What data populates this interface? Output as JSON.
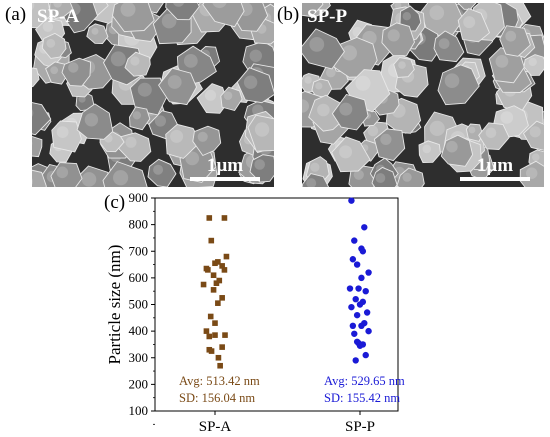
{
  "panels": {
    "a": {
      "label": "(a)",
      "tag": "SP-A",
      "scale": "1µm"
    },
    "b": {
      "label": "(b)",
      "tag": "SP-P",
      "scale": "1µm"
    },
    "c": {
      "label": "(c)"
    }
  },
  "chart_data": {
    "type": "scatter",
    "ylabel": "Particle size (nm)",
    "ylim": [
      100,
      900
    ],
    "yticks": [
      100,
      200,
      300,
      400,
      500,
      600,
      700,
      800,
      900
    ],
    "categories": [
      "SP-A",
      "SP-P"
    ],
    "grid": false,
    "series": [
      {
        "name": "SP-A",
        "marker": "square",
        "color": "#7a4a16",
        "jitter": [
          -0.2,
          0.33,
          -0.13,
          0.4,
          0.1,
          0.0,
          0.25,
          -0.3,
          0.33,
          -0.25,
          -0.05,
          0.15,
          0.05,
          -0.4,
          -0.05,
          0.25,
          0.1,
          -0.15,
          0.0,
          -0.3,
          0.0,
          -0.2,
          0.35,
          -0.2,
          0.25,
          -0.12,
          0.12,
          0.18
        ],
        "values": [
          825,
          825,
          740,
          680,
          660,
          655,
          645,
          635,
          630,
          630,
          610,
          590,
          580,
          575,
          555,
          525,
          505,
          455,
          430,
          400,
          385,
          380,
          385,
          330,
          340,
          325,
          300,
          270
        ],
        "annotation": {
          "avg": "Avg: 513.42 nm",
          "sd": "SD: 156.04 nm"
        }
      },
      {
        "name": "SP-P",
        "marker": "circle",
        "color": "#1a1ad6",
        "jitter": [
          -0.3,
          0.15,
          -0.2,
          0.05,
          0.1,
          -0.25,
          -0.1,
          0.3,
          0.05,
          -0.35,
          -0.05,
          0.2,
          -0.15,
          0.1,
          0.0,
          -0.3,
          0.25,
          -0.1,
          0.15,
          -0.25,
          0.05,
          0.3,
          -0.2,
          -0.1,
          0.1,
          -0.05,
          0.0,
          0.2,
          -0.15
        ],
        "values": [
          890,
          790,
          740,
          710,
          700,
          670,
          650,
          620,
          600,
          560,
          560,
          550,
          520,
          510,
          500,
          490,
          470,
          460,
          430,
          420,
          420,
          400,
          390,
          360,
          350,
          355,
          345,
          310,
          290
        ],
        "annotation": {
          "avg": "Avg: 529.65 nm",
          "sd": "SD: 155.42 nm"
        }
      }
    ]
  }
}
